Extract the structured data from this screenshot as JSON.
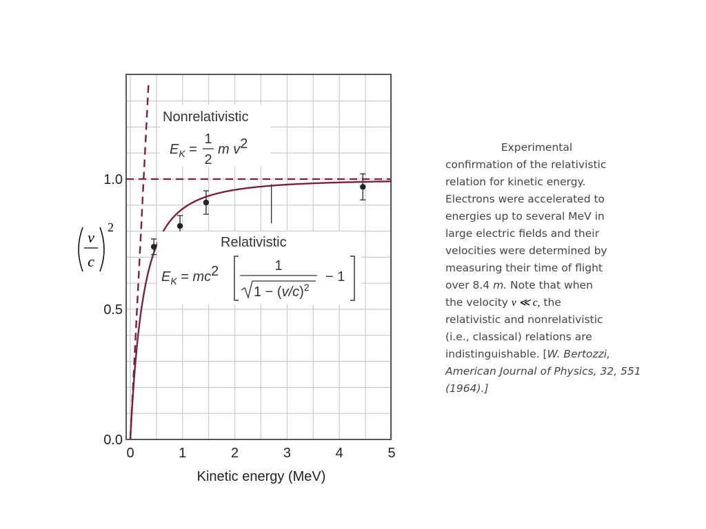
{
  "chart_data": {
    "type": "line",
    "xlabel": "Kinetic energy (MeV)",
    "ylabel": "(v/c)^2",
    "xlim": [
      0,
      5
    ],
    "ylim": [
      0,
      1.35
    ],
    "x_ticks": [
      "0",
      "1",
      "2",
      "3",
      "4",
      "5"
    ],
    "y_ticks": [
      "0.0",
      "0.5",
      "1.0"
    ],
    "grid": true,
    "rest_energy_mev": 0.511,
    "series": [
      {
        "name": "Nonrelativistic",
        "style": "dashed",
        "color": "#7b1f3a",
        "formula": "E_K = 1/2 m v^2",
        "x": [
          0,
          0.05,
          0.1,
          0.15,
          0.2,
          0.25,
          0.3,
          0.35
        ],
        "y": [
          0,
          0.196,
          0.391,
          0.587,
          0.783,
          0.978,
          1.174,
          1.37
        ]
      },
      {
        "name": "Relativistic",
        "style": "solid",
        "color": "#7b1f3a",
        "formula": "E_K = mc^2 [1/sqrt(1-(v/c)^2) - 1]",
        "x": [
          0,
          0.02,
          0.05,
          0.1,
          0.2,
          0.3,
          0.5,
          0.75,
          1.0,
          1.5,
          2.0,
          2.5,
          3.0,
          3.5,
          4.0,
          4.5,
          5.0
        ],
        "y": [
          0,
          0.074,
          0.168,
          0.29,
          0.483,
          0.604,
          0.747,
          0.837,
          0.887,
          0.934,
          0.955,
          0.969,
          0.977,
          0.982,
          0.986,
          0.989,
          0.991
        ]
      },
      {
        "name": "Experimental data",
        "style": "points",
        "color": "#222222",
        "x": [
          0.45,
          0.95,
          1.45,
          4.45
        ],
        "y": [
          0.74,
          0.82,
          0.91,
          0.97
        ],
        "err": [
          0.03,
          0.04,
          0.045,
          0.05
        ]
      }
    ],
    "reference_line": {
      "y": 1.0,
      "style": "dashed",
      "color": "#7b1f3a"
    },
    "annotation_bar": {
      "x": 2.7,
      "y_top": 0.98,
      "y_bottom": 0.83
    },
    "labels": {
      "nonrel_title": "Nonrelativistic",
      "rel_title": "Relativistic"
    }
  },
  "ylabel_parts": {
    "v": "v",
    "c": "c",
    "exp": "2"
  },
  "caption": {
    "lines": [
      "Experimental",
      "confirmation of the relativistic",
      "relation for kinetic energy.",
      "Electrons were accelerated to",
      "energies up to several MeV in",
      "large electric fields and their",
      "velocities were determined by",
      "measuring their time of flight"
    ],
    "l9_a": "over 8.4 ",
    "l9_m": "m.",
    "l9_b": " Note that when",
    "l10_a": "the velocity ",
    "l10_math": "v ≪ c,",
    "l10_b": " the",
    "l11": "relativistic and nonrelativistic",
    "l12": "(i.e., classical) relations are",
    "l13_a": "indistinguishable. [",
    "l13_b": "W. Bertozzi,",
    "l14_a": "American Journal of Physics, ",
    "l14_b": "32, 551",
    "l15": "(1964).]"
  }
}
